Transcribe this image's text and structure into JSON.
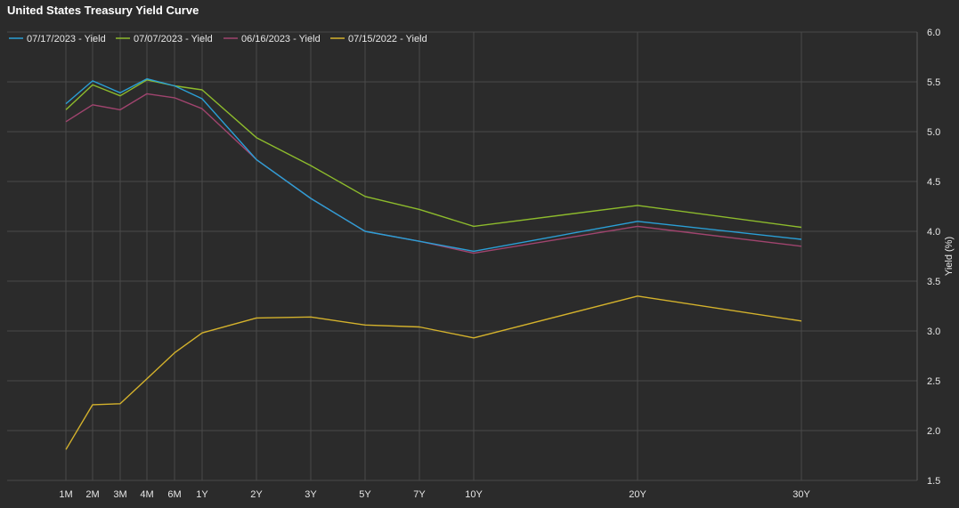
{
  "chart_data": {
    "type": "line",
    "title": "United States Treasury Yield Curve",
    "ylabel": "Yield (%)",
    "xlabel": "",
    "ylim": [
      1.5,
      6.0
    ],
    "y_ticks": [
      "6.0",
      "5.5",
      "5.0",
      "4.5",
      "4.0",
      "3.5",
      "3.0",
      "2.5",
      "2.0",
      "1.5"
    ],
    "categories": [
      "1M",
      "2M",
      "3M",
      "4M",
      "6M",
      "1Y",
      "2Y",
      "3Y",
      "5Y",
      "7Y",
      "10Y",
      "20Y",
      "30Y"
    ],
    "x_years": [
      0.0833,
      0.1667,
      0.25,
      0.3333,
      0.5,
      1,
      2,
      3,
      5,
      7,
      10,
      20,
      30
    ],
    "grid": true,
    "legend_position": "top-left",
    "series": [
      {
        "name": "07/17/2023 - Yield",
        "color": "#2a9fd6",
        "values": [
          5.28,
          5.51,
          5.39,
          5.53,
          5.46,
          5.33,
          4.72,
          4.33,
          4.0,
          3.9,
          3.8,
          4.1,
          3.92
        ]
      },
      {
        "name": "07/07/2023 - Yield",
        "color": "#8dbb2c",
        "values": [
          5.22,
          5.47,
          5.36,
          5.52,
          5.46,
          5.42,
          4.94,
          4.66,
          4.35,
          4.22,
          4.05,
          4.26,
          4.04
        ]
      },
      {
        "name": "06/16/2023 - Yield",
        "color": "#a0446e",
        "values": [
          5.1,
          5.27,
          5.22,
          5.38,
          5.34,
          5.23,
          4.72,
          4.33,
          4.0,
          3.9,
          3.78,
          4.05,
          3.85
        ]
      },
      {
        "name": "07/15/2022 - Yield",
        "color": "#d4b22c",
        "values": [
          1.81,
          2.26,
          2.27,
          2.52,
          2.78,
          2.98,
          3.13,
          3.14,
          3.06,
          3.04,
          2.93,
          3.35,
          3.1
        ]
      }
    ]
  }
}
